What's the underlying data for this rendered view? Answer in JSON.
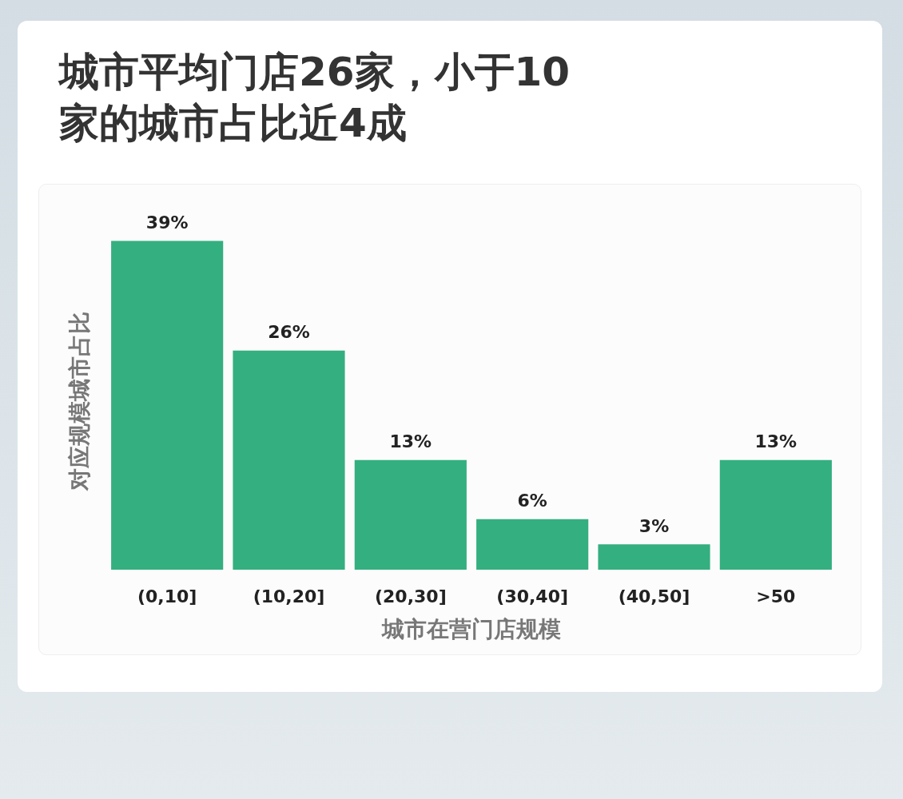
{
  "chart_data": {
    "type": "bar",
    "title": "城市平均门店26家，小于10家的城市占比近4成",
    "xlabel": "城市在营门店规模",
    "ylabel": "对应规模城市占比",
    "categories": [
      "(0,10]",
      "(10,20]",
      "(20,30]",
      "(30,40]",
      "(40,50]",
      ">50"
    ],
    "values": [
      39,
      26,
      13,
      6,
      3,
      13
    ],
    "value_labels": [
      "39%",
      "26%",
      "13%",
      "6%",
      "3%",
      "13%"
    ],
    "color": "#34af80",
    "tick_labels": "x"
  }
}
